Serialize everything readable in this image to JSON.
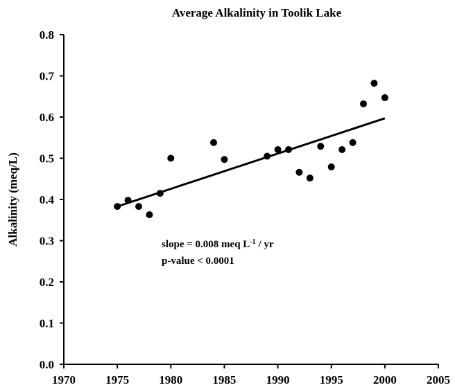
{
  "chart_data": {
    "type": "scatter",
    "title": "Average Alkalinity in Toolik Lake",
    "y_label": "Alkalinity (meq/L)",
    "x": [
      1975,
      1976,
      1977,
      1978,
      1979,
      1980,
      1984,
      1985,
      1989,
      1990,
      1991,
      1992,
      1993,
      1994,
      1995,
      1996,
      1997,
      1998,
      1999,
      2000
    ],
    "values": [
      0.383,
      0.398,
      0.383,
      0.363,
      0.415,
      0.5,
      0.538,
      0.497,
      0.505,
      0.521,
      0.521,
      0.466,
      0.452,
      0.529,
      0.479,
      0.521,
      0.538,
      0.632,
      0.682,
      0.647
    ],
    "color": "#000000",
    "trend": {
      "x": [
        1975,
        2000
      ],
      "values": [
        0.383,
        0.597
      ]
    },
    "xlim": [
      1970,
      2005
    ],
    "xticks": [
      1970,
      1975,
      1980,
      1985,
      1990,
      1995,
      2000,
      2005
    ],
    "ylim": [
      0,
      0.8
    ],
    "yticks": [
      {
        "value": 0,
        "label": "0.0"
      },
      0.1,
      0.2,
      0.3,
      0.4,
      0.5,
      0.6,
      0.7,
      0.8
    ],
    "annotations": [
      [
        "slope = 0.008 meq L",
        "-1",
        " / yr"
      ],
      [
        "p-value < 0.0001"
      ]
    ]
  }
}
